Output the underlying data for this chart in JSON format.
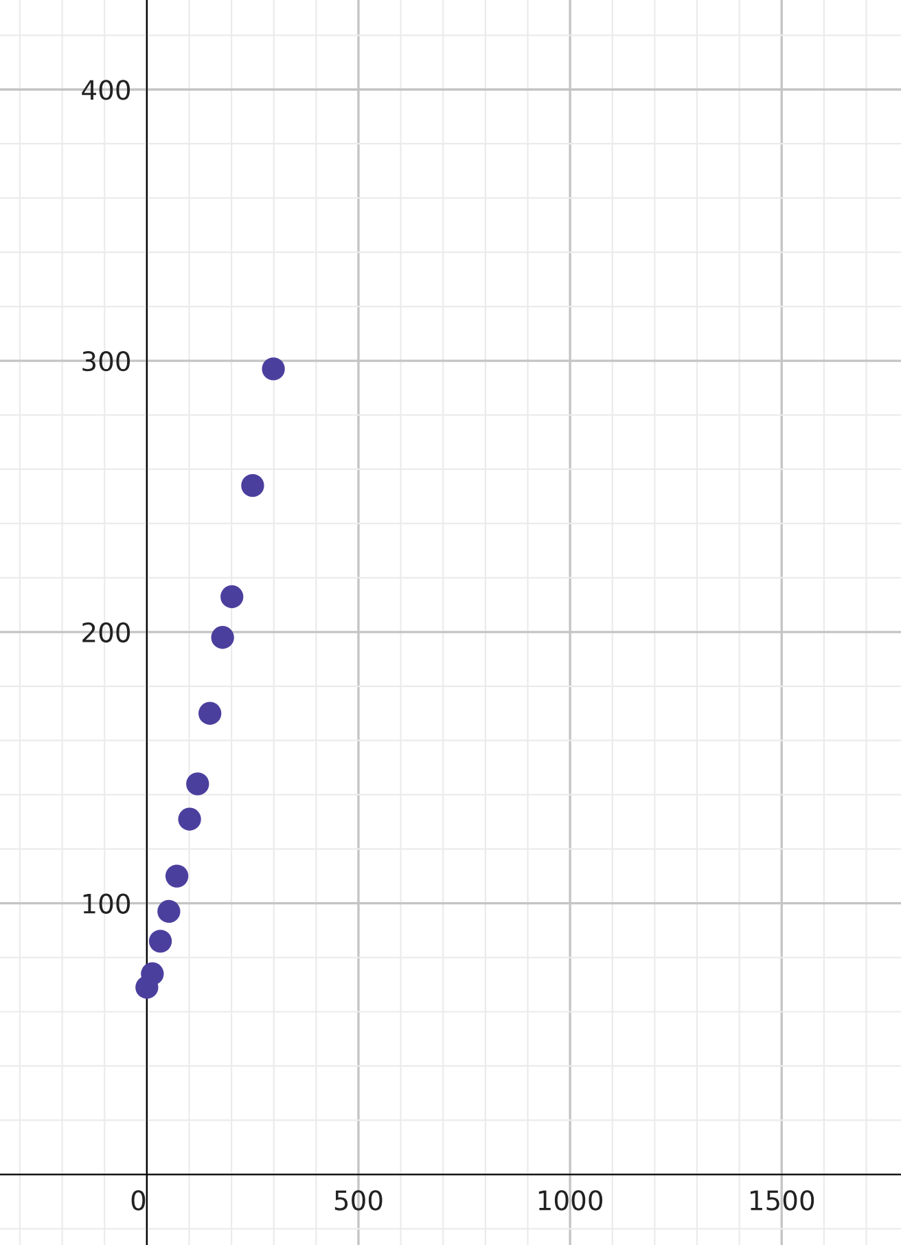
{
  "chart_data": {
    "type": "scatter",
    "x": [
      0,
      13,
      32,
      52,
      71,
      101,
      120,
      149,
      179,
      201,
      250,
      299
    ],
    "values": [
      69,
      74,
      86,
      97,
      110,
      131,
      144,
      170,
      198,
      213,
      254,
      297
    ],
    "color": "#4b3f9e",
    "marker": "circle",
    "xlim": [
      -347,
      1782
    ],
    "ylim": [
      -26,
      433
    ],
    "xticks": [
      0,
      500,
      1000,
      1500
    ],
    "yticks": [
      100,
      200,
      300,
      400
    ],
    "grid": true,
    "legend": false
  }
}
